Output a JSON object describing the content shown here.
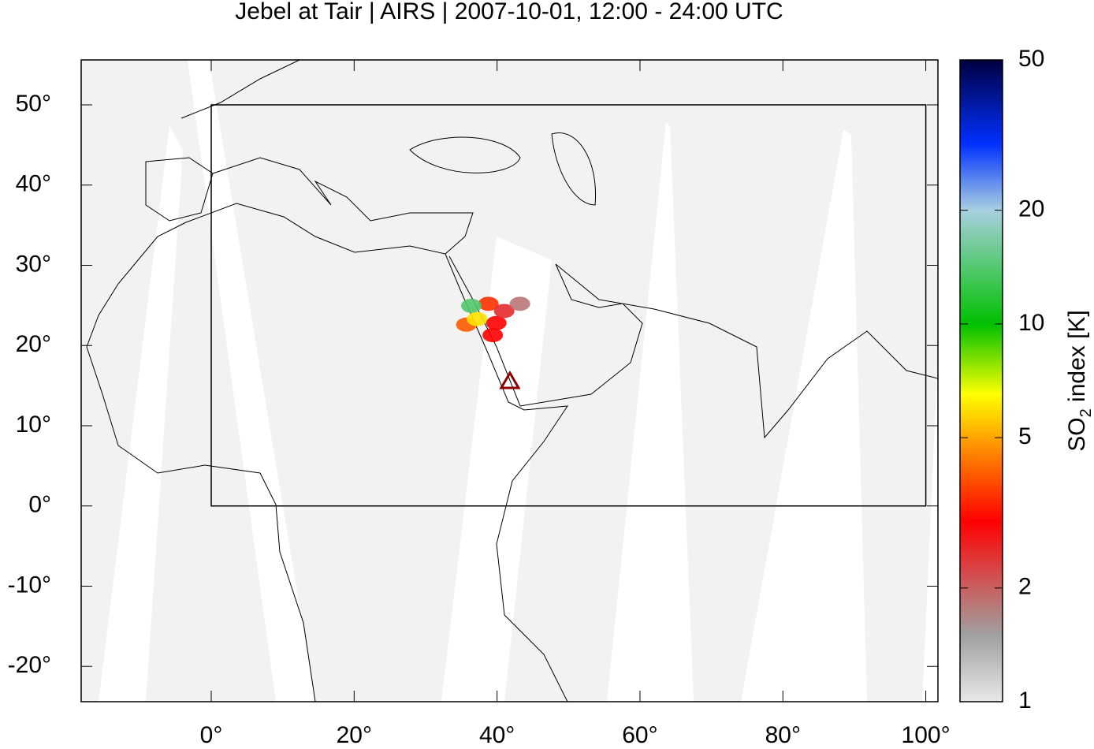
{
  "chart_data": {
    "type": "map",
    "title": "Jebel at Tair | AIRS | 2007-10-01, 12:00 - 24:00 UTC",
    "xlim": [
      -18.2,
      101.7
    ],
    "ylim": [
      -24.4,
      55.6
    ],
    "xticks": [
      {
        "value": 0,
        "label": "0°"
      },
      {
        "value": 20,
        "label": "20°"
      },
      {
        "value": 40,
        "label": "40°"
      },
      {
        "value": 60,
        "label": "60°"
      },
      {
        "value": 80,
        "label": "80°"
      },
      {
        "value": 100,
        "label": "100°"
      }
    ],
    "yticks": [
      {
        "value": -20,
        "label": "-20°"
      },
      {
        "value": -10,
        "label": "-10°"
      },
      {
        "value": 0,
        "label": "0°"
      },
      {
        "value": 10,
        "label": "10°"
      },
      {
        "value": 20,
        "label": "20°"
      },
      {
        "value": 30,
        "label": "30°"
      },
      {
        "value": 40,
        "label": "40°"
      },
      {
        "value": 50,
        "label": "50°"
      }
    ],
    "box": {
      "lon": [
        0,
        100
      ],
      "lat": [
        0,
        50
      ]
    },
    "volcano": {
      "lon": 41.8,
      "lat": 15.6,
      "color": "#8b0000"
    },
    "plume": [
      {
        "lon": 35.7,
        "lat": 22.6,
        "value": 4
      },
      {
        "lon": 39.4,
        "lat": 21.3,
        "value": 3
      },
      {
        "lon": 39.9,
        "lat": 22.8,
        "value": 3
      },
      {
        "lon": 38.8,
        "lat": 25.2,
        "value": 3.5
      },
      {
        "lon": 41.0,
        "lat": 24.3,
        "value": 2.5
      },
      {
        "lon": 43.2,
        "lat": 25.2,
        "value": 1.8
      },
      {
        "lon": 37.2,
        "lat": 23.3,
        "value": 6
      },
      {
        "lon": 36.4,
        "lat": 24.95,
        "value": 14
      }
    ],
    "colorbar": {
      "label": {
        "prefix": "SO",
        "subscript": "2",
        "suffix": " index [K]"
      },
      "lim": [
        1,
        50
      ],
      "log_scale": true,
      "ticks": [
        1,
        2,
        5,
        10,
        20,
        50
      ],
      "colormap": [
        {
          "value": 1,
          "color": "#e8e8e8"
        },
        {
          "value": 1.5,
          "color": "#a0a0a0"
        },
        {
          "value": 2,
          "color": "#c86060"
        },
        {
          "value": 3,
          "color": "#ff0000"
        },
        {
          "value": 4.5,
          "color": "#ff8000"
        },
        {
          "value": 6.5,
          "color": "#ffff00"
        },
        {
          "value": 10,
          "color": "#00c000"
        },
        {
          "value": 20,
          "color": "#a8d0e0"
        },
        {
          "value": 30,
          "color": "#0030ff"
        },
        {
          "value": 50,
          "color": "#000040"
        }
      ]
    }
  }
}
